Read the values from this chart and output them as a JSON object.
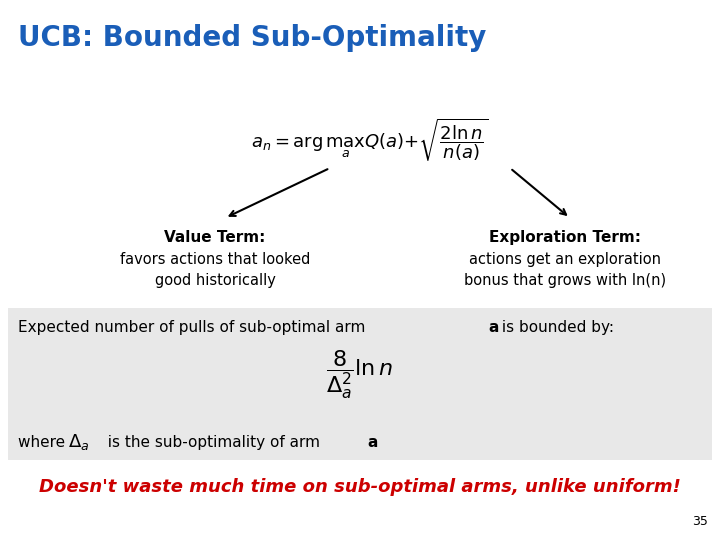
{
  "title": "UCB: Bounded Sub-Optimality",
  "title_color": "#1a5eb8",
  "title_fontsize": 20,
  "bg_color": "#ffffff",
  "gray_box_color": "#e8e8e8",
  "main_formula": "$a_n = \\arg\\max_a Q(a) + \\sqrt{\\dfrac{2\\ln n}{n(a)}}$",
  "value_term_label": "Value Term:",
  "value_term_text": "favors actions that looked\ngood historically",
  "exploration_term_label": "Exploration Term:",
  "exploration_term_text": "actions get an exploration\nbonus that grows with ln(n)",
  "expected_line": "Expected number of pulls of sub-optimal arm \\textbf{a} is bounded by:",
  "bound_formula": "$\\dfrac{8}{\\Delta_a^2}\\ln n$",
  "where_formula": "$\\Delta_a$",
  "bottom_text": "Doesn't waste much time on sub-optimal arms, unlike uniform!",
  "bottom_color": "#cc0000",
  "slide_number": "35"
}
